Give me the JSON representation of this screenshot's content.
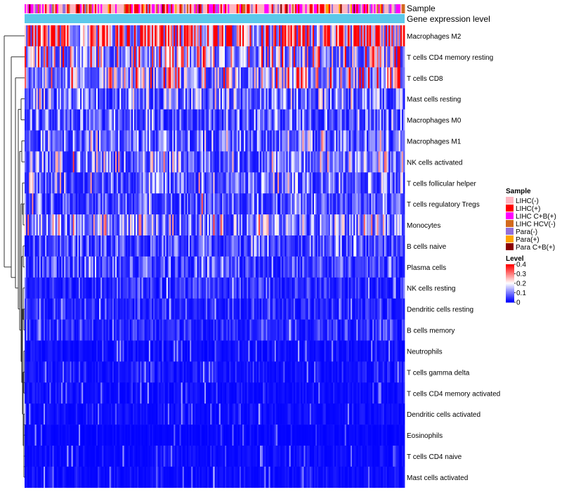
{
  "chart_data": {
    "type": "heatmap",
    "title": "",
    "annotation_tracks": [
      "Sample",
      "Gene expression level"
    ],
    "rows": [
      {
        "name": "Macrophages M2",
        "mean_level": 0.3
      },
      {
        "name": "T cells CD4 memory resting",
        "mean_level": 0.15
      },
      {
        "name": "T cells CD8",
        "mean_level": 0.14
      },
      {
        "name": "Mast cells resting",
        "mean_level": 0.08
      },
      {
        "name": "Macrophages M0",
        "mean_level": 0.06
      },
      {
        "name": "Macrophages M1",
        "mean_level": 0.08
      },
      {
        "name": "NK cells activated",
        "mean_level": 0.09
      },
      {
        "name": "T cells follicular helper",
        "mean_level": 0.08
      },
      {
        "name": "T cells regulatory  Tregs",
        "mean_level": 0.06
      },
      {
        "name": "Monocytes",
        "mean_level": 0.1
      },
      {
        "name": "B cells naive",
        "mean_level": 0.05
      },
      {
        "name": "Plasma cells",
        "mean_level": 0.05
      },
      {
        "name": "NK cells resting",
        "mean_level": 0.03
      },
      {
        "name": "Dendritic cells resting",
        "mean_level": 0.03
      },
      {
        "name": "B cells memory",
        "mean_level": 0.03
      },
      {
        "name": "Neutrophils",
        "mean_level": 0.01
      },
      {
        "name": "T cells gamma delta",
        "mean_level": 0.015
      },
      {
        "name": "T cells CD4 memory activated",
        "mean_level": 0.01
      },
      {
        "name": "Dendritic cells activated",
        "mean_level": 0.01
      },
      {
        "name": "Eosinophils",
        "mean_level": 0.005
      },
      {
        "name": "T cells CD4 naive",
        "mean_level": 0.01
      },
      {
        "name": "Mast cells activated",
        "mean_level": 0.01
      }
    ],
    "legend_sample": {
      "title": "Sample",
      "entries": [
        {
          "label": "LIHC(-)",
          "color": "#ffb6c1"
        },
        {
          "label": "LIHC(+)",
          "color": "#ff0000"
        },
        {
          "label": "LIHC C+B(+)",
          "color": "#ff00ff"
        },
        {
          "label": "LIHC HCV(-)",
          "color": "#d2691e"
        },
        {
          "label": "Para(-)",
          "color": "#9370db"
        },
        {
          "label": "Para(+)",
          "color": "#ffa500"
        },
        {
          "label": "Para C+B(+)",
          "color": "#8b0000"
        }
      ]
    },
    "legend_level": {
      "title": "Level",
      "ticks": [
        "0.4",
        "0.3",
        "0.2",
        "0.1",
        "0"
      ],
      "range": [
        0,
        0.4
      ],
      "colors": {
        "low": "#0000ff",
        "mid": "#ffffff",
        "high": "#ff0000"
      }
    },
    "expression_bar_color": "#5bc8ea"
  }
}
